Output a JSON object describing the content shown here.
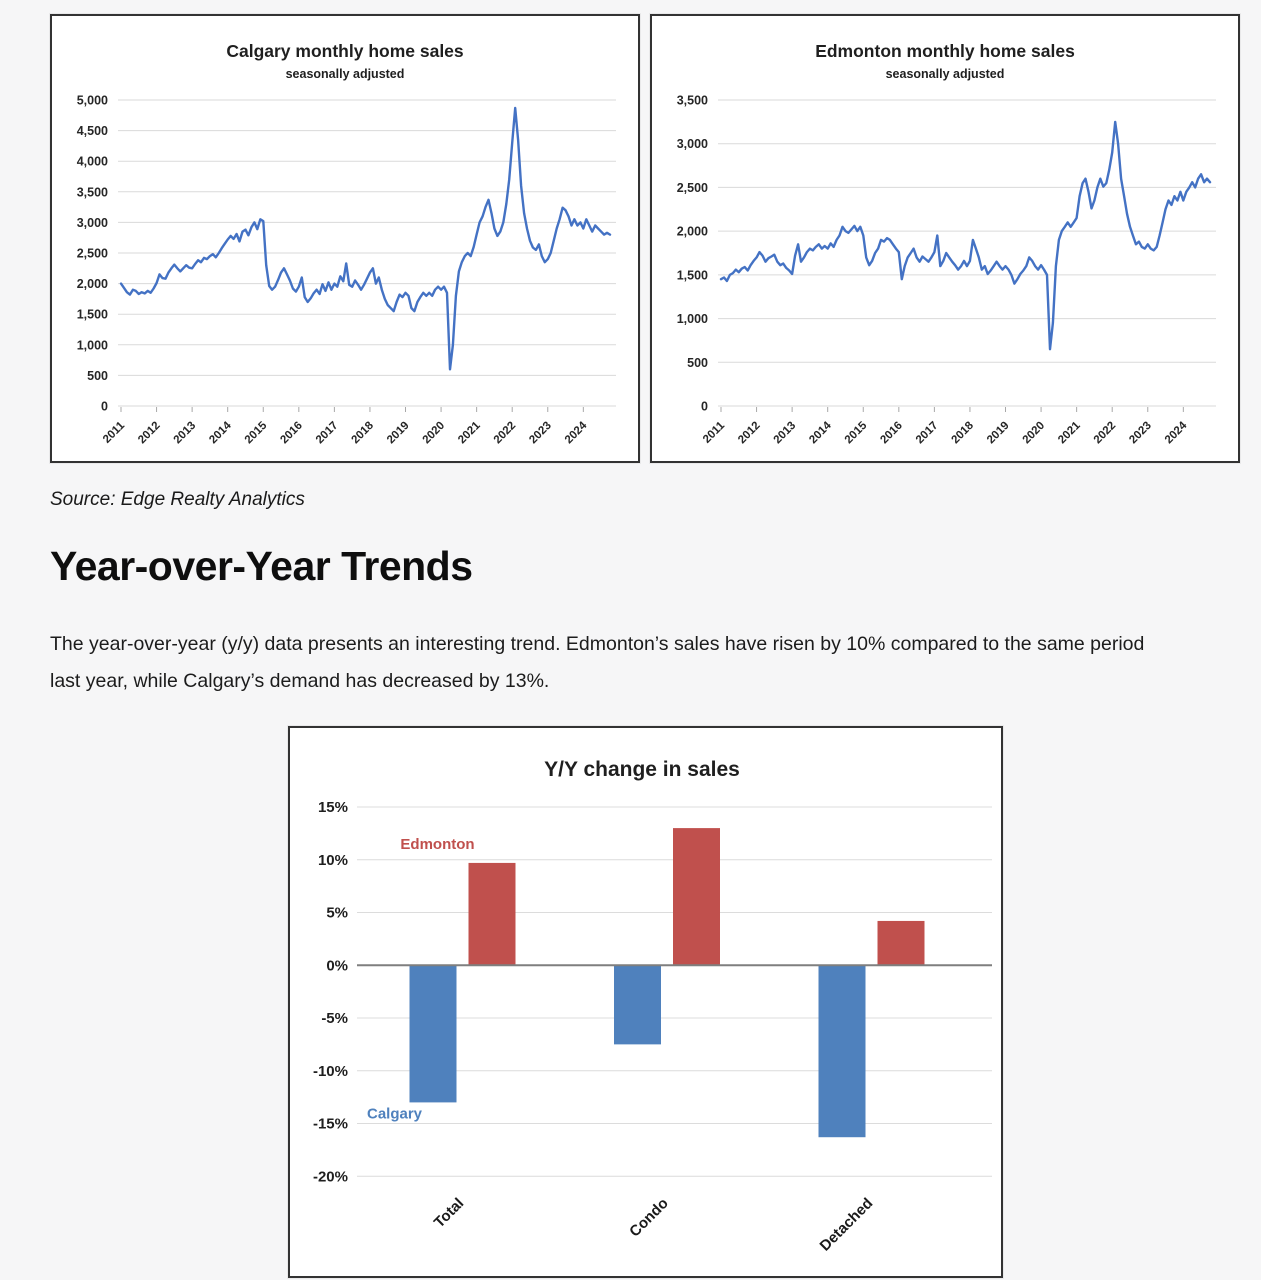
{
  "page": {
    "source_note": "Source: Edge Realty Analytics",
    "heading": "Year-over-Year Trends",
    "paragraph": "The year-over-year (y/y) data presents an interesting trend. Edmonton’s sales have risen by 10% compared to the same period last year, while Calgary’s demand has decreased by 13%."
  },
  "chart_data": [
    {
      "id": "calgary-sales",
      "type": "line",
      "title": "Calgary monthly home sales",
      "subtitle": "seasonally adjusted",
      "x_start": "2011-01",
      "x_freq": "monthly",
      "x_tick_labels": [
        "2011",
        "2012",
        "2013",
        "2014",
        "2015",
        "2016",
        "2017",
        "2018",
        "2019",
        "2020",
        "2021",
        "2022",
        "2023",
        "2024"
      ],
      "ylim": [
        0,
        5000
      ],
      "y_tick_step": 500,
      "y_tick_labels": [
        "5,000",
        "4,500",
        "4,000",
        "3,500",
        "3,000",
        "2,500",
        "2,000",
        "1,500",
        "1,000",
        "500",
        "0"
      ],
      "line_color": "#4472c4",
      "grid": true,
      "values": [
        2000,
        1930,
        1860,
        1820,
        1900,
        1880,
        1830,
        1860,
        1840,
        1880,
        1850,
        1920,
        2010,
        2150,
        2090,
        2080,
        2180,
        2250,
        2310,
        2250,
        2200,
        2250,
        2300,
        2260,
        2250,
        2320,
        2380,
        2350,
        2420,
        2400,
        2450,
        2480,
        2430,
        2500,
        2580,
        2650,
        2720,
        2780,
        2730,
        2810,
        2690,
        2850,
        2880,
        2790,
        2920,
        3000,
        2890,
        3050,
        3020,
        2300,
        1960,
        1900,
        1950,
        2060,
        2180,
        2250,
        2150,
        2050,
        1920,
        1870,
        1950,
        2100,
        1780,
        1700,
        1760,
        1840,
        1900,
        1830,
        1990,
        1880,
        2020,
        1900,
        2000,
        1950,
        2120,
        2040,
        2330,
        1980,
        1950,
        2050,
        1980,
        1900,
        1980,
        2080,
        2180,
        2250,
        2000,
        2100,
        1900,
        1750,
        1650,
        1600,
        1550,
        1700,
        1820,
        1780,
        1850,
        1800,
        1600,
        1550,
        1700,
        1780,
        1850,
        1800,
        1850,
        1800,
        1900,
        1950,
        1900,
        1950,
        1850,
        600,
        1000,
        1800,
        2200,
        2350,
        2450,
        2500,
        2450,
        2600,
        2800,
        3000,
        3100,
        3250,
        3370,
        3150,
        2900,
        2780,
        2850,
        3000,
        3300,
        3700,
        4300,
        4870,
        4350,
        3600,
        3150,
        2900,
        2700,
        2590,
        2550,
        2640,
        2450,
        2350,
        2400,
        2500,
        2700,
        2900,
        3050,
        3240,
        3200,
        3100,
        2950,
        3050,
        2950,
        3000,
        2900,
        3050,
        2950,
        2850,
        2950,
        2900,
        2850,
        2800,
        2830,
        2800
      ]
    },
    {
      "id": "edmonton-sales",
      "type": "line",
      "title": "Edmonton monthly home sales",
      "subtitle": "seasonally adjusted",
      "x_start": "2011-01",
      "x_freq": "monthly",
      "x_tick_labels": [
        "2011",
        "2012",
        "2013",
        "2014",
        "2015",
        "2016",
        "2017",
        "2018",
        "2019",
        "2020",
        "2021",
        "2022",
        "2023",
        "2024"
      ],
      "ylim": [
        0,
        3500
      ],
      "y_tick_step": 500,
      "y_tick_labels": [
        "3,500",
        "3,000",
        "2,500",
        "2,000",
        "1,500",
        "1,000",
        "500",
        "0"
      ],
      "line_color": "#4472c4",
      "grid": true,
      "values": [
        1450,
        1470,
        1430,
        1500,
        1520,
        1560,
        1530,
        1570,
        1590,
        1550,
        1610,
        1660,
        1700,
        1760,
        1720,
        1650,
        1690,
        1710,
        1730,
        1650,
        1610,
        1630,
        1580,
        1550,
        1510,
        1720,
        1850,
        1650,
        1700,
        1760,
        1800,
        1780,
        1820,
        1850,
        1800,
        1830,
        1800,
        1860,
        1820,
        1900,
        1950,
        2050,
        2000,
        1980,
        2020,
        2060,
        2000,
        2050,
        1950,
        1700,
        1610,
        1660,
        1750,
        1800,
        1900,
        1880,
        1920,
        1900,
        1850,
        1800,
        1760,
        1450,
        1600,
        1700,
        1750,
        1800,
        1700,
        1650,
        1710,
        1680,
        1650,
        1700,
        1760,
        1950,
        1600,
        1660,
        1750,
        1700,
        1650,
        1610,
        1560,
        1600,
        1660,
        1600,
        1660,
        1900,
        1800,
        1700,
        1560,
        1600,
        1510,
        1550,
        1600,
        1650,
        1600,
        1560,
        1600,
        1560,
        1500,
        1400,
        1450,
        1510,
        1550,
        1600,
        1700,
        1660,
        1600,
        1560,
        1610,
        1560,
        1500,
        650,
        950,
        1600,
        1900,
        2000,
        2050,
        2100,
        2050,
        2100,
        2150,
        2400,
        2550,
        2600,
        2450,
        2260,
        2350,
        2500,
        2600,
        2510,
        2550,
        2700,
        2900,
        3250,
        3000,
        2600,
        2400,
        2200,
        2050,
        1950,
        1850,
        1880,
        1820,
        1800,
        1850,
        1800,
        1780,
        1820,
        1950,
        2100,
        2250,
        2350,
        2300,
        2400,
        2350,
        2450,
        2350,
        2450,
        2500,
        2560,
        2500,
        2600,
        2650,
        2560,
        2600,
        2560
      ]
    },
    {
      "id": "yy-change",
      "type": "bar",
      "title": "Y/Y change in sales",
      "categories": [
        "Total",
        "Condo",
        "Detached"
      ],
      "series": [
        {
          "name": "Calgary",
          "color": "#4f81bd",
          "values": [
            -13,
            -7.5,
            -16.3
          ]
        },
        {
          "name": "Edmonton",
          "color": "#c0504d",
          "values": [
            9.7,
            13,
            4.2
          ]
        }
      ],
      "ylim": [
        -20,
        15
      ],
      "y_tick_step": 5,
      "y_tick_labels": [
        "15%",
        "10%",
        "5%",
        "0%",
        "-5%",
        "-10%",
        "-15%",
        "-20%"
      ],
      "grid": true,
      "legend_position": "inline-data-labels"
    }
  ]
}
